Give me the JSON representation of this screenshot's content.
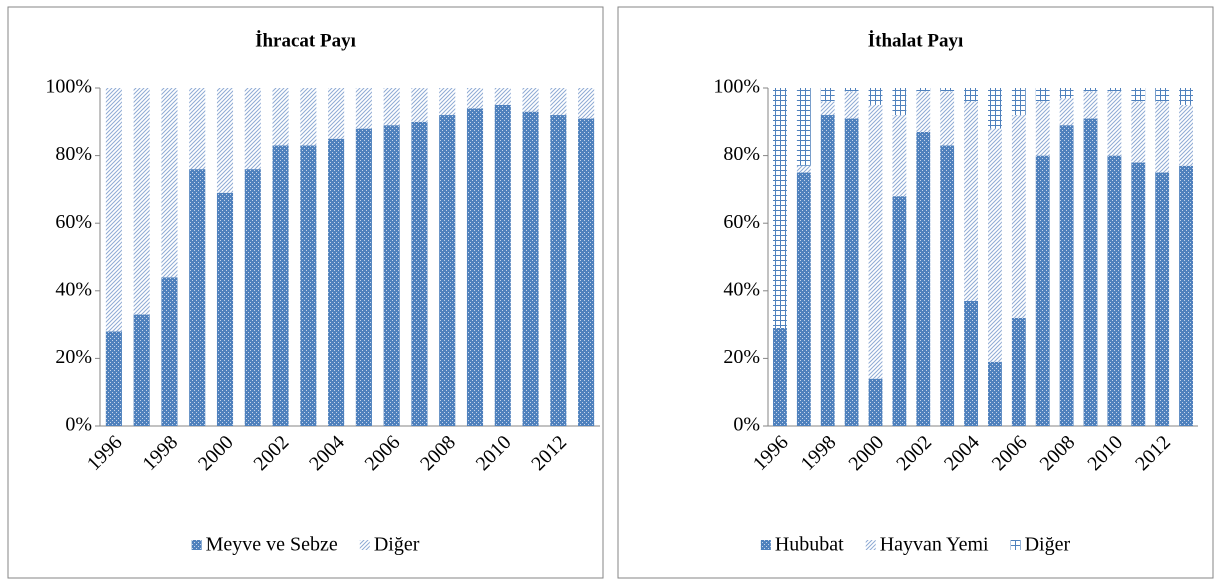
{
  "chart_data": [
    {
      "type": "bar",
      "stacked": true,
      "title": "İhracat Payı",
      "categories": [
        "1996",
        null,
        "1998",
        null,
        "2000",
        null,
        "2002",
        null,
        "2004",
        null,
        "2006",
        null,
        "2008",
        null,
        "2010",
        null,
        "2012",
        null
      ],
      "series": [
        {
          "name": "Meyve ve Sebze",
          "color": "#4f81bd",
          "pattern": "dots",
          "values": [
            28,
            33,
            44,
            76,
            69,
            76,
            83,
            83,
            85,
            88,
            89,
            90,
            92,
            94,
            95,
            93,
            92,
            91
          ]
        },
        {
          "name": "Diğer",
          "color": "#4f81bd",
          "pattern": "diagonal",
          "values": [
            72,
            67,
            56,
            24,
            31,
            24,
            17,
            17,
            15,
            12,
            11,
            10,
            8,
            6,
            5,
            7,
            8,
            9
          ]
        }
      ],
      "ylim": [
        0,
        100
      ],
      "yticks": [
        {
          "value": 0,
          "label": "0%"
        },
        {
          "value": 20,
          "label": "20%"
        },
        {
          "value": 40,
          "label": "40%"
        },
        {
          "value": 60,
          "label": "60%"
        },
        {
          "value": 80,
          "label": "80%"
        },
        {
          "value": 100,
          "label": "100%"
        }
      ],
      "legend": "bottom"
    },
    {
      "type": "bar",
      "stacked": true,
      "title": "İthalat Payı",
      "categories": [
        "1996",
        null,
        "1998",
        null,
        "2000",
        null,
        "2002",
        null,
        "2004",
        null,
        "2006",
        null,
        "2008",
        null,
        "2010",
        null,
        "2012",
        null
      ],
      "series": [
        {
          "name": "Hububat",
          "color": "#4f81bd",
          "pattern": "dots",
          "values": [
            29,
            75,
            92,
            91,
            14,
            68,
            87,
            83,
            37,
            19,
            32,
            80,
            89,
            91,
            80,
            78,
            75,
            77
          ]
        },
        {
          "name": "Hayvan Yemi",
          "color": "#4f81bd",
          "pattern": "diagonal",
          "values": [
            0,
            2,
            4,
            8,
            81,
            24,
            12,
            16,
            59,
            69,
            60,
            16,
            8,
            8,
            19,
            18,
            21,
            18
          ]
        },
        {
          "name": "Diğer",
          "color": "#4f81bd",
          "pattern": "grid",
          "values": [
            71,
            23,
            4,
            1,
            5,
            8,
            1,
            1,
            4,
            12,
            8,
            4,
            3,
            1,
            1,
            4,
            4,
            5
          ]
        }
      ],
      "ylim": [
        0,
        100
      ],
      "yticks": [
        {
          "value": 0,
          "label": "0%"
        },
        {
          "value": 20,
          "label": "20%"
        },
        {
          "value": 40,
          "label": "40%"
        },
        {
          "value": 60,
          "label": "60%"
        },
        {
          "value": 80,
          "label": "80%"
        },
        {
          "value": 100,
          "label": "100%"
        }
      ],
      "legend": "bottom"
    }
  ]
}
